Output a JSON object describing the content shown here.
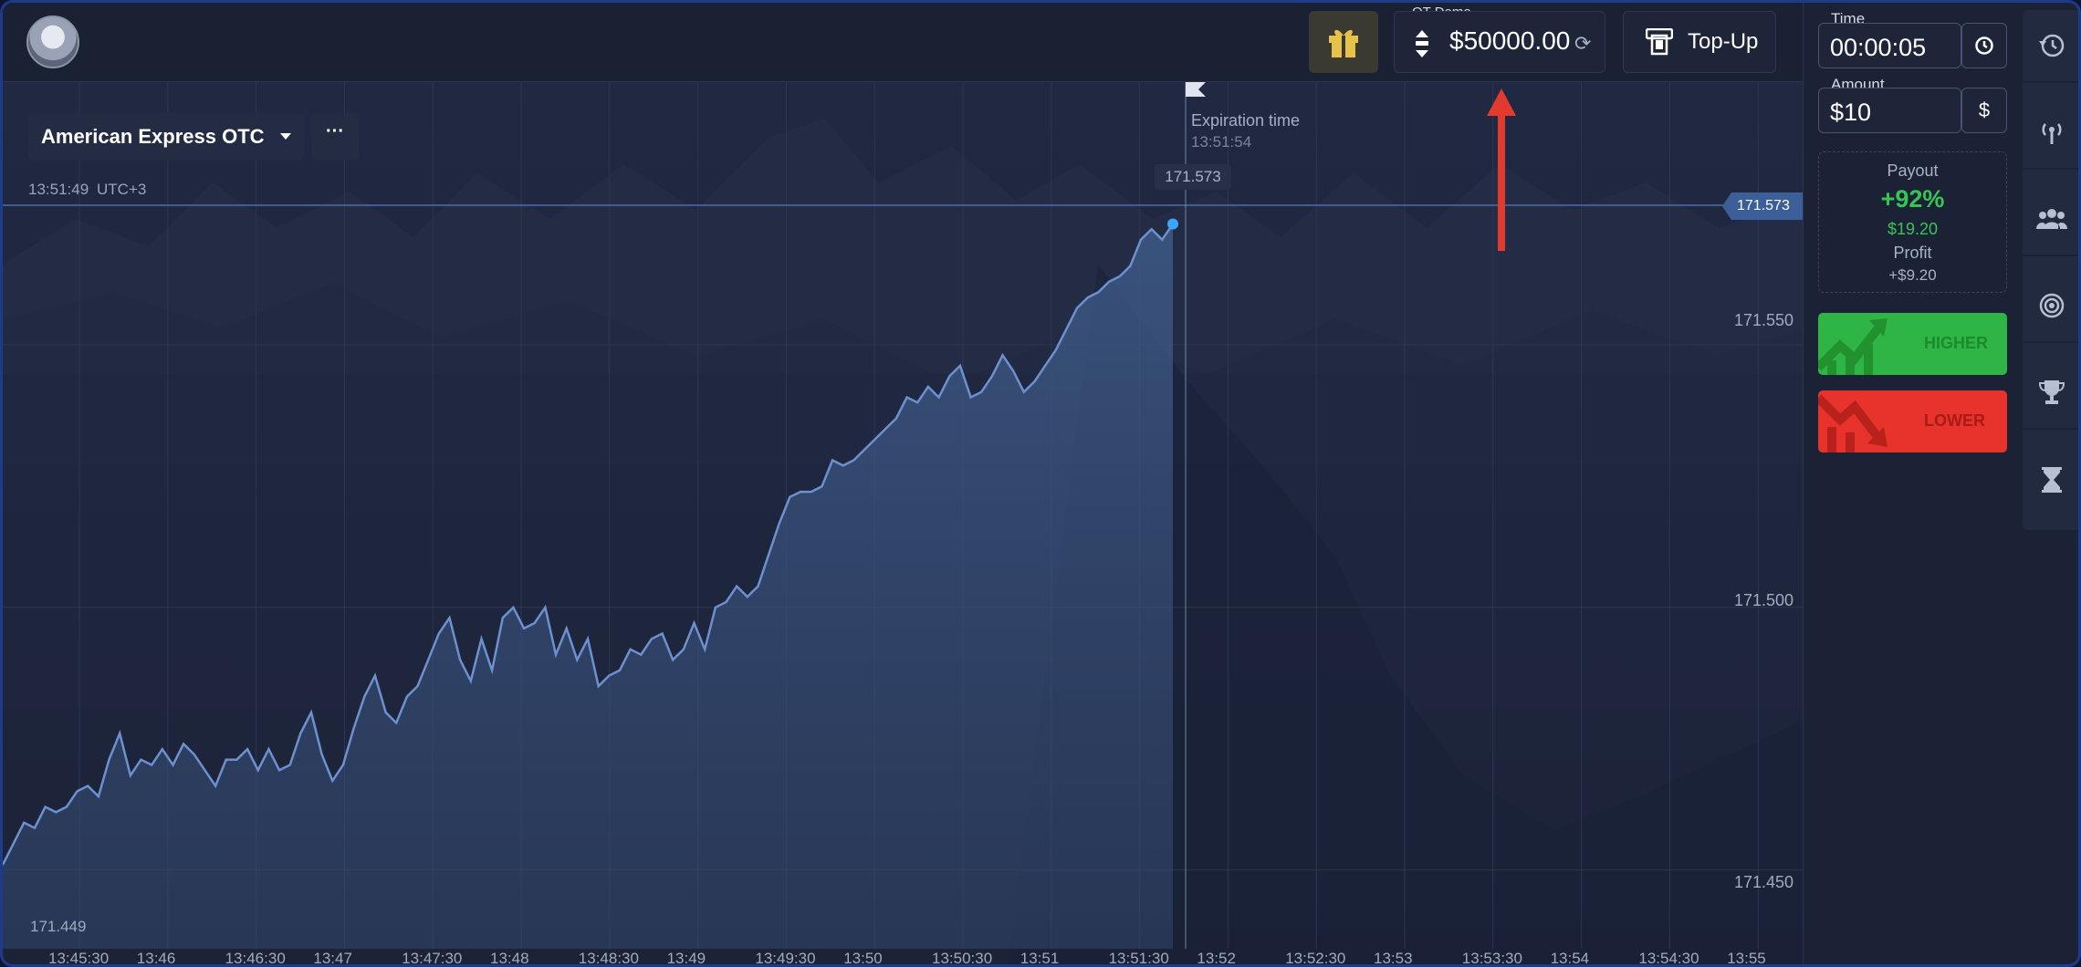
{
  "header": {
    "account_label": "QT Demo",
    "balance": "$50000.00",
    "topup_label": "Top-Up"
  },
  "chart": {
    "asset": "American Express OTC",
    "more": "···",
    "clock": "13:51:49",
    "timezone": "UTC+3",
    "expiration_title": "Expiration time",
    "expiration_time": "13:51:54",
    "peak_value": "171.573",
    "current_price": "171.573",
    "low_value": "171.449"
  },
  "chart_data": {
    "type": "area",
    "ylim": [
      171.435,
      171.6
    ],
    "y_ticks": [
      "171.550",
      "171.500",
      "171.450"
    ],
    "x_ticks": [
      "13:45:30",
      "13:46",
      "13:46:30",
      "13:47",
      "13:47:30",
      "13:48",
      "13:48:30",
      "13:49",
      "13:49:30",
      "13:50",
      "13:50:30",
      "13:51",
      "13:51:30",
      "13:52",
      "13:52:30",
      "13:53",
      "13:53:30",
      "13:54",
      "13:54:30",
      "13:55",
      "13:5"
    ],
    "series": [
      {
        "values": [
          171.451,
          171.455,
          171.459,
          171.458,
          171.462,
          171.461,
          171.462,
          171.465,
          171.466,
          171.464,
          171.471,
          171.476,
          171.468,
          171.471,
          171.47,
          171.473,
          171.47,
          171.474,
          171.472,
          171.469,
          171.466,
          171.471,
          171.471,
          171.473,
          171.469,
          171.473,
          171.469,
          171.47,
          171.476,
          171.48,
          171.472,
          171.467,
          171.47,
          171.477,
          171.483,
          171.487,
          171.48,
          171.478,
          171.483,
          171.485,
          171.49,
          171.495,
          171.498,
          171.49,
          171.486,
          171.494,
          171.488,
          171.498,
          171.5,
          171.496,
          171.497,
          171.5,
          171.491,
          171.496,
          171.49,
          171.494,
          171.485,
          171.487,
          171.488,
          171.492,
          171.491,
          171.494,
          171.495,
          171.49,
          171.492,
          171.497,
          171.492,
          171.5,
          171.501,
          171.504,
          171.502,
          171.504,
          171.51,
          171.516,
          171.521,
          171.522,
          171.522,
          171.523,
          171.528,
          171.527,
          171.528,
          171.53,
          171.532,
          171.534,
          171.536,
          171.54,
          171.539,
          171.542,
          171.54,
          171.544,
          171.546,
          171.54,
          171.541,
          171.544,
          171.548,
          171.545,
          171.541,
          171.543,
          171.546,
          171.549,
          171.553,
          171.557,
          171.559,
          171.56,
          171.562,
          171.563,
          171.565,
          171.57,
          171.572,
          171.57,
          171.573
        ]
      }
    ]
  },
  "panel": {
    "time_label": "Time",
    "time_value": "00:00:05",
    "amount_label": "Amount",
    "amount_value": "$10",
    "currency_symbol": "$",
    "payout_title": "Payout",
    "payout_percent": "+92%",
    "payout_amount": "$19.20",
    "profit_title": "Profit",
    "profit_value": "+$9.20",
    "higher_label": "HIGHER",
    "lower_label": "LOWER"
  },
  "colors": {
    "higher": "#2fb545",
    "lower": "#e8322c",
    "payout_green": "#38c454",
    "line": "#6d91cf",
    "annotation_arrow": "#e23a2e"
  },
  "sidenav_icons": [
    "history-icon",
    "signal-icon",
    "community-icon",
    "target-icon",
    "trophy-icon",
    "hourglass-icon"
  ]
}
